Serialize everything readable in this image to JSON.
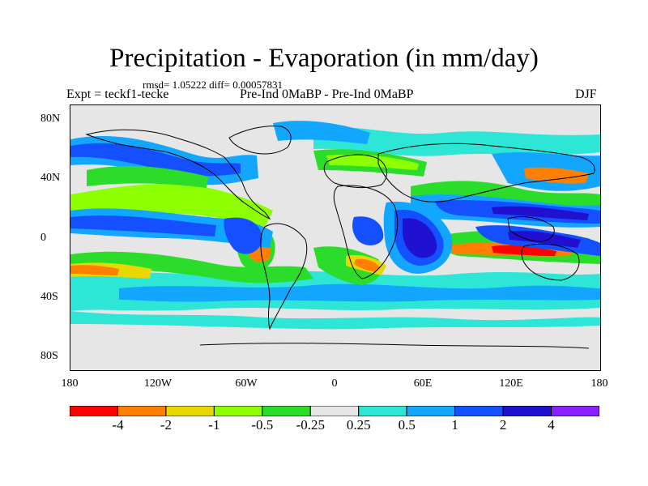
{
  "title": "Precipitation - Evaporation (in mm/day)",
  "stats": "rmsd= 1.05222 diff= 0.00057831",
  "experiment": "Expt = teckf1-tecke",
  "comparison": "Pre-Ind 0MaBP - Pre-Ind 0MaBP",
  "season": "DJF",
  "axes": {
    "lat_labels": [
      "80N",
      "40N",
      "0",
      "40S",
      "80S"
    ],
    "lon_labels": [
      "180",
      "120W",
      "60W",
      "0",
      "60E",
      "120E",
      "180"
    ]
  },
  "colorbar": {
    "colors": [
      "#ff0000",
      "#ff8000",
      "#e6d800",
      "#8cff00",
      "#2bdc2b",
      "#e6e6e6",
      "#2ee6d6",
      "#12a6ff",
      "#1450ff",
      "#2010d0",
      "#8a20ff"
    ],
    "labels": [
      "-4",
      "-2",
      "-1",
      "-0.5",
      "-0.25",
      "0.25",
      "0.5",
      "1",
      "2",
      "4"
    ]
  },
  "colors": {
    "background": "#e6e6e6",
    "coastline": "#000000"
  }
}
